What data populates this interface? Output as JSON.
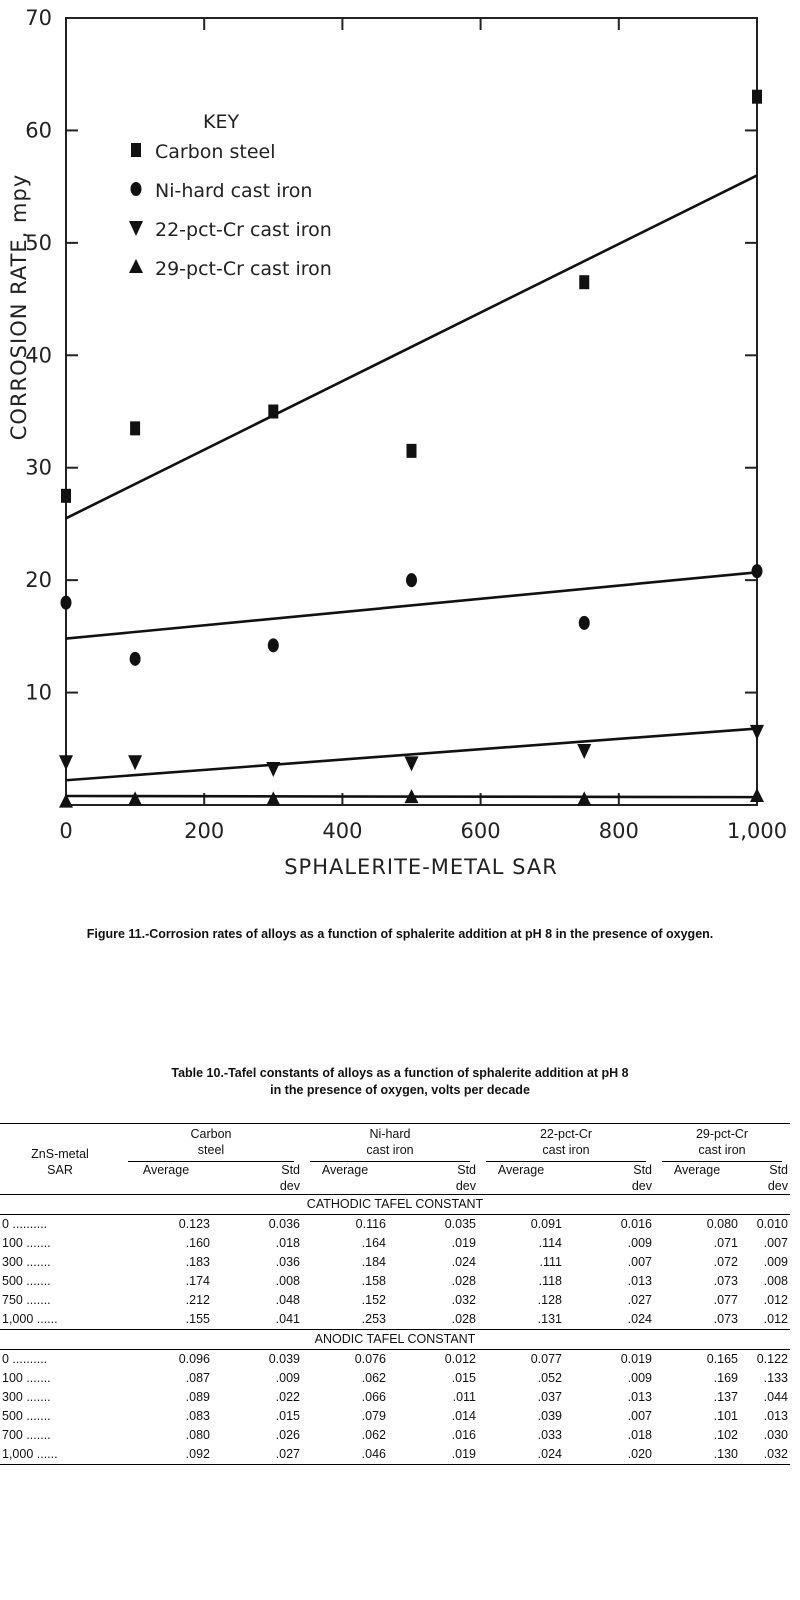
{
  "chart_data": {
    "type": "scatter",
    "xlabel": "SPHALERITE-METAL SAR",
    "ylabel": "CORROSION RATE, mpy",
    "xlim": [
      0,
      1000
    ],
    "ylim": [
      0,
      70
    ],
    "x_ticks": [
      "0",
      "200",
      "400",
      "600",
      "800",
      "1,000"
    ],
    "x_tick_values": [
      0,
      200,
      400,
      600,
      800,
      1000
    ],
    "y_ticks": [
      "10",
      "20",
      "30",
      "40",
      "50",
      "60",
      "70"
    ],
    "y_tick_values": [
      10,
      20,
      30,
      40,
      50,
      60,
      70
    ],
    "legend_title": "KEY",
    "legend_position": "top-left",
    "series": [
      {
        "name": "Carbon steel",
        "marker": "square",
        "points": [
          [
            0,
            27.5
          ],
          [
            100,
            33.5
          ],
          [
            300,
            35
          ],
          [
            500,
            31.5
          ],
          [
            750,
            46.5
          ],
          [
            1000,
            63
          ]
        ],
        "fit": [
          [
            0,
            25.5
          ],
          [
            1000,
            56
          ]
        ]
      },
      {
        "name": "Ni-hard cast iron",
        "marker": "circle",
        "points": [
          [
            0,
            18
          ],
          [
            100,
            13
          ],
          [
            300,
            14.2
          ],
          [
            500,
            20
          ],
          [
            750,
            16.2
          ],
          [
            1000,
            20.8
          ]
        ],
        "fit": [
          [
            0,
            14.8
          ],
          [
            1000,
            20.7
          ]
        ]
      },
      {
        "name": "22-pct-Cr cast iron",
        "marker": "triangle-down",
        "points": [
          [
            0,
            3.8
          ],
          [
            100,
            3.8
          ],
          [
            300,
            3.2
          ],
          [
            500,
            3.7
          ],
          [
            750,
            4.8
          ],
          [
            1000,
            6.5
          ]
        ],
        "fit": [
          [
            0,
            2.2
          ],
          [
            1000,
            6.8
          ]
        ]
      },
      {
        "name": "29-pct-Cr cast iron",
        "marker": "triangle-up",
        "points": [
          [
            0,
            0.3
          ],
          [
            100,
            0.5
          ],
          [
            300,
            0.5
          ],
          [
            500,
            0.7
          ],
          [
            750,
            0.5
          ],
          [
            1000,
            0.8
          ]
        ],
        "fit": [
          [
            0,
            0.8
          ],
          [
            1000,
            0.7
          ]
        ]
      }
    ]
  },
  "figure_caption": "Figure 11.-Corrosion rates of alloys as a function of sphalerite addition at pH 8 in the presence of oxygen.",
  "table": {
    "title_line1": "Table 10.-Tafel constants of alloys as a function of sphalerite addition at pH 8",
    "title_line2": "in the presence of oxygen, volts per decade",
    "row_header_line1": "ZnS-metal",
    "row_header_line2": "SAR",
    "groups": [
      {
        "line1": "Carbon",
        "line2": "steel"
      },
      {
        "line1": "Ni-hard",
        "line2": "cast iron"
      },
      {
        "line1": "22-pct-Cr",
        "line2": "cast iron"
      },
      {
        "line1": "29-pct-Cr",
        "line2": "cast iron"
      }
    ],
    "sub_avg": "Average",
    "sub_std1": "Std",
    "sub_std2": "dev",
    "sections": [
      {
        "title": "CATHODIC TAFEL CONSTANT",
        "rows": [
          {
            "sar": "0 ..........",
            "cells": [
              "0.123",
              "0.036",
              "0.116",
              "0.035",
              "0.091",
              "0.016",
              "0.080",
              "0.010"
            ]
          },
          {
            "sar": "100 .......",
            "cells": [
              ".160",
              ".018",
              ".164",
              ".019",
              ".114",
              ".009",
              ".071",
              ".007"
            ]
          },
          {
            "sar": "300 .......",
            "cells": [
              ".183",
              ".036",
              ".184",
              ".024",
              ".111",
              ".007",
              ".072",
              ".009"
            ]
          },
          {
            "sar": "500 .......",
            "cells": [
              ".174",
              ".008",
              ".158",
              ".028",
              ".118",
              ".013",
              ".073",
              ".008"
            ]
          },
          {
            "sar": "750 .......",
            "cells": [
              ".212",
              ".048",
              ".152",
              ".032",
              ".128",
              ".027",
              ".077",
              ".012"
            ]
          },
          {
            "sar": "1,000 ......",
            "cells": [
              ".155",
              ".041",
              ".253",
              ".028",
              ".131",
              ".024",
              ".073",
              ".012"
            ]
          }
        ]
      },
      {
        "title": "ANODIC TAFEL CONSTANT",
        "rows": [
          {
            "sar": "0 ..........",
            "cells": [
              "0.096",
              "0.039",
              "0.076",
              "0.012",
              "0.077",
              "0.019",
              "0.165",
              "0.122"
            ]
          },
          {
            "sar": "100 .......",
            "cells": [
              ".087",
              ".009",
              ".062",
              ".015",
              ".052",
              ".009",
              ".169",
              ".133"
            ]
          },
          {
            "sar": "300 .......",
            "cells": [
              ".089",
              ".022",
              ".066",
              ".011",
              ".037",
              ".013",
              ".137",
              ".044"
            ]
          },
          {
            "sar": "500 .......",
            "cells": [
              ".083",
              ".015",
              ".079",
              ".014",
              ".039",
              ".007",
              ".101",
              ".013"
            ]
          },
          {
            "sar": "700 .......",
            "cells": [
              ".080",
              ".026",
              ".062",
              ".016",
              ".033",
              ".018",
              ".102",
              ".030"
            ]
          },
          {
            "sar": "1,000 ......",
            "cells": [
              ".092",
              ".027",
              ".046",
              ".019",
              ".024",
              ".020",
              ".130",
              ".032"
            ]
          }
        ]
      }
    ]
  }
}
